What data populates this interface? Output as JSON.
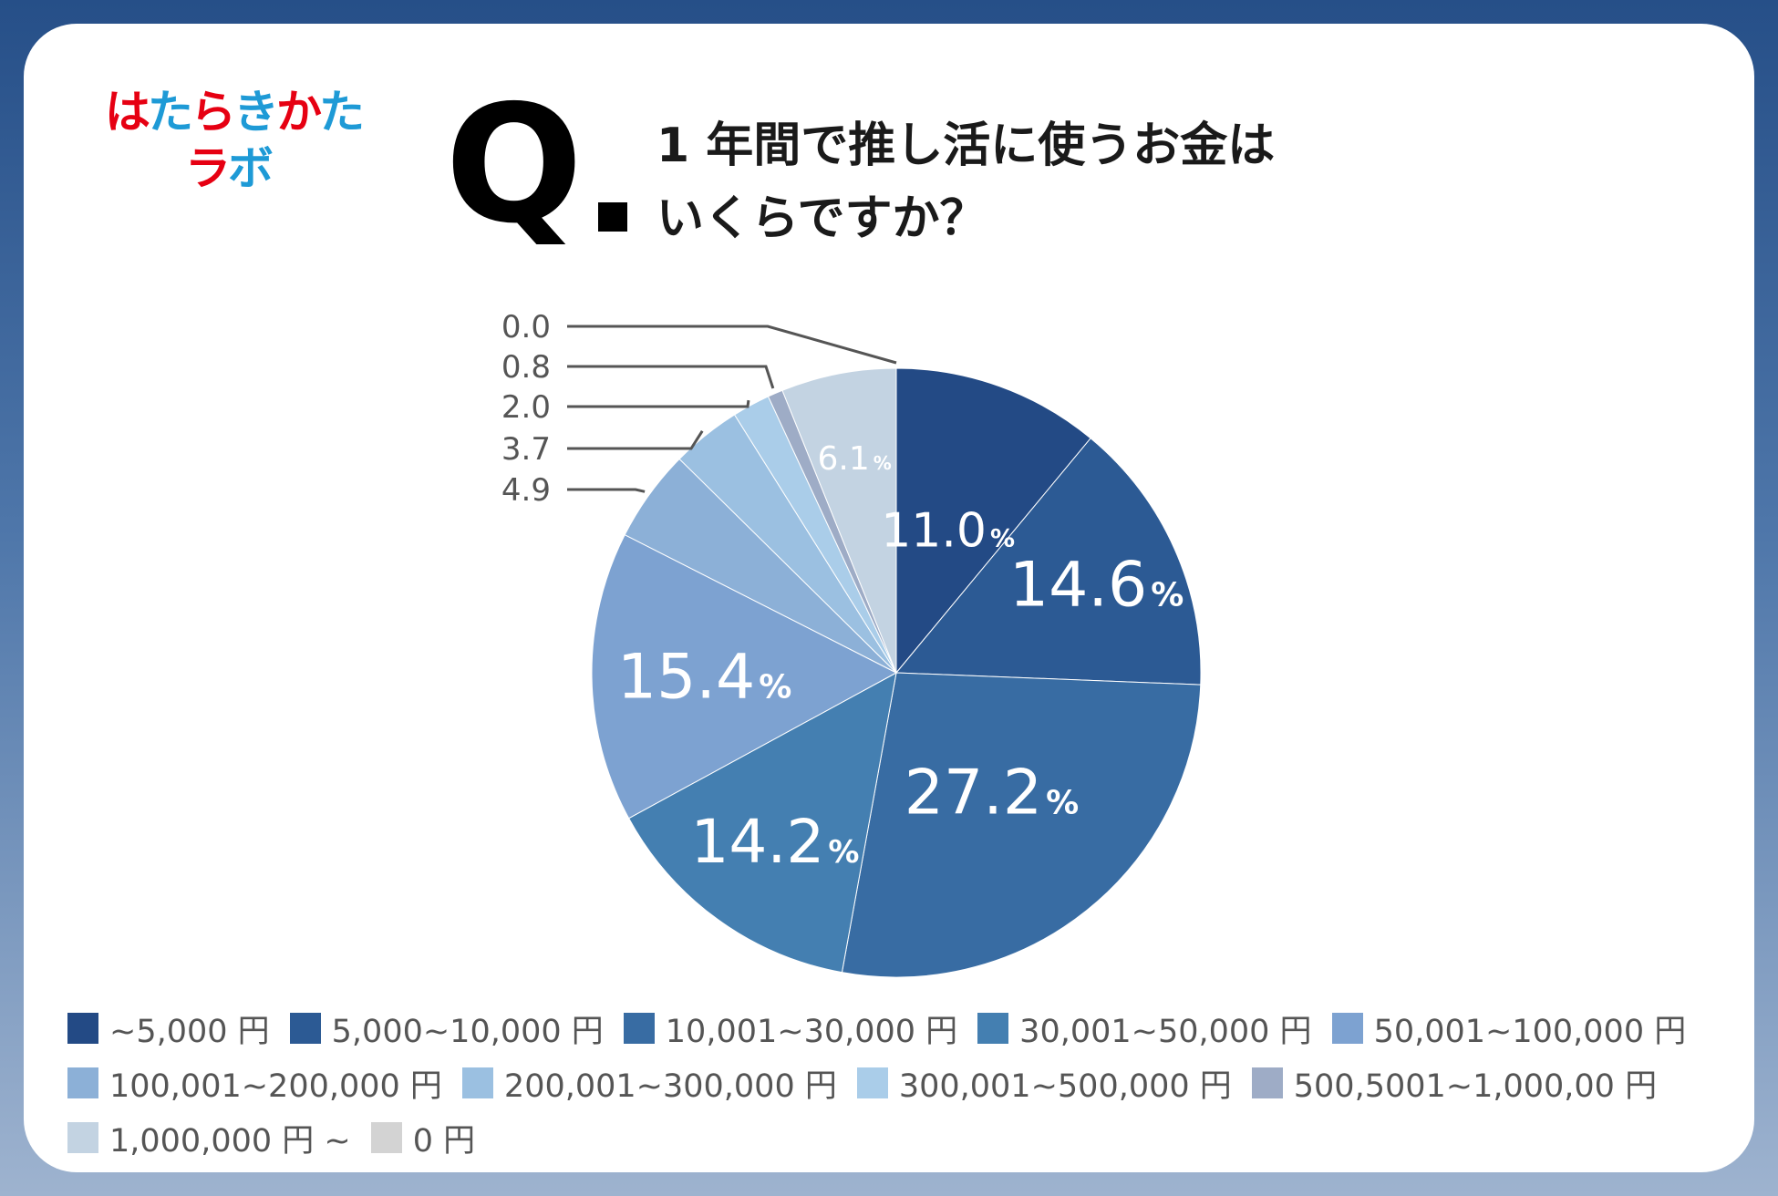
{
  "logo": {
    "line1": [
      "は",
      "た",
      "ら",
      "き",
      "か",
      "た"
    ],
    "line1_colors": [
      "#e60012",
      "#1e9ad6",
      "#e60012",
      "#1e9ad6",
      "#e60012",
      "#1e9ad6"
    ],
    "line2": [
      "ラ",
      "ボ"
    ],
    "line2_colors": [
      "#e60012",
      "#1e9ad6"
    ]
  },
  "question": {
    "mark": "Q",
    "line1": "1 年間で推し活に使うお金は",
    "line2": "いくらですか？"
  },
  "chart_data": {
    "type": "pie",
    "start_angle_deg": 0,
    "direction": "clockwise",
    "slices": [
      {
        "label": "~5,000 円",
        "value": 11.0,
        "display": "11.0",
        "color": "#234a85"
      },
      {
        "label": "5,000~10,000 円",
        "value": 14.6,
        "display": "14.6",
        "color": "#2c5a94"
      },
      {
        "label": "10,001~30,000 円",
        "value": 27.2,
        "display": "27.2",
        "color": "#386ca3"
      },
      {
        "label": "30,001~50,000 円",
        "value": 14.2,
        "display": "14.2",
        "color": "#447fb1"
      },
      {
        "label": "50,001~100,000 円",
        "value": 15.4,
        "display": "15.4",
        "color": "#7da2d1"
      },
      {
        "label": "100,001~200,000 円",
        "value": 4.9,
        "display": "4.9",
        "color": "#8cb0d7"
      },
      {
        "label": "200,001~300,000 円",
        "value": 3.7,
        "display": "3.7",
        "color": "#9bc0e1"
      },
      {
        "label": "300,001~500,000 円",
        "value": 2.0,
        "display": "2.0",
        "color": "#aacde9"
      },
      {
        "label": "500,5001~1,000,00 円",
        "value": 0.8,
        "display": "0.8",
        "color": "#9eacc6"
      },
      {
        "label": "1,000,000 円 ~",
        "value": 6.1,
        "display": "6.1",
        "color": "#c3d3e2"
      },
      {
        "label": "0 円",
        "value": 0.0,
        "display": "0.0",
        "color": "#d3d3d3"
      }
    ],
    "percent_sign": "%",
    "legend_rows": [
      [
        0,
        1,
        2,
        3,
        4
      ],
      [
        5,
        6,
        7,
        8
      ],
      [
        9,
        10
      ]
    ]
  }
}
